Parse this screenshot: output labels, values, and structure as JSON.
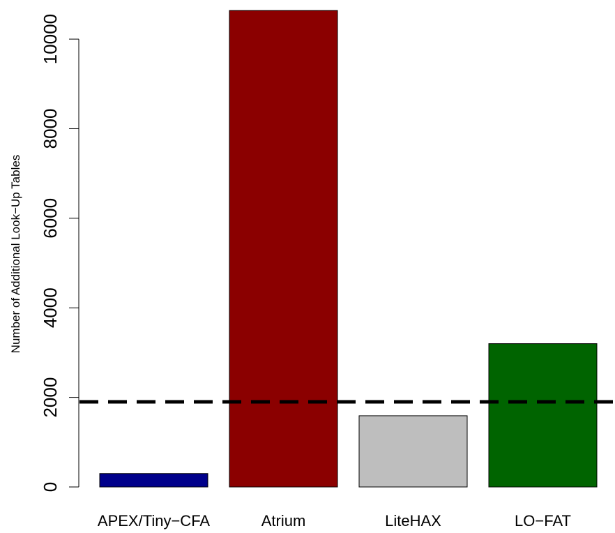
{
  "chart_data": {
    "type": "bar",
    "title": "",
    "xlabel": "",
    "ylabel": "Number of Additional Look−Up Tables",
    "categories": [
      "APEX/Tiny−CFA",
      "Atrium",
      "LiteHAX",
      "LO−FAT"
    ],
    "values": [
      300,
      10640,
      1590,
      3200
    ],
    "colors": [
      "#00008B",
      "#8B0000",
      "#BEBEBE",
      "#006400"
    ],
    "ylim": [
      0,
      10640
    ],
    "yticks": [
      0,
      2000,
      4000,
      6000,
      8000,
      10000
    ],
    "ytick_labels": [
      "0",
      "2000",
      "4000",
      "6000",
      "8000",
      "10000"
    ],
    "reference_line": {
      "value": 1900,
      "style": "dashed",
      "color": "#000000"
    },
    "grid": false,
    "legend": "none"
  }
}
